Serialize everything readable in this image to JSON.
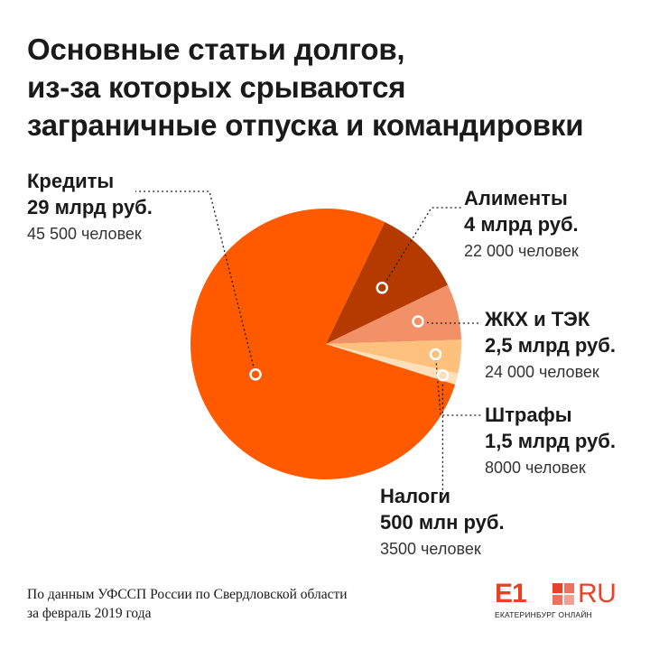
{
  "title_lines": [
    "Основные статьи долгов,",
    "из-за которых срываются",
    "заграничные отпуска и командировки"
  ],
  "chart_data": {
    "type": "pie",
    "unit": "млрд руб.",
    "slices": [
      {
        "name": "Кредиты",
        "value": 29,
        "amount_label": "29 млрд руб.",
        "people_label": "45 500 человек",
        "color": "#ff5a00"
      },
      {
        "name": "Алименты",
        "value": 4,
        "amount_label": "4 млрд руб.",
        "people_label": "22 000 человек",
        "color": "#b53a00"
      },
      {
        "name": "ЖКХ и ТЭК",
        "value": 2.5,
        "amount_label": "2,5 млрд руб.",
        "people_label": "24 000 человек",
        "color": "#f29068"
      },
      {
        "name": "Штрафы",
        "value": 1.5,
        "amount_label": "1,5 млрд руб.",
        "people_label": "8000 человек",
        "color": "#fec17d"
      },
      {
        "name": "Налоги",
        "value": 0.5,
        "amount_label": "500 млн руб.",
        "people_label": "3500 человек",
        "color": "#fde0ba"
      }
    ]
  },
  "source_lines": [
    "По данным УФССП России по Свердловской области",
    "за февраль 2019 года"
  ],
  "logo": {
    "mark": "E1",
    "domain": "RU",
    "tagline": "ЕКАТЕРИНБУРГ ОНЛАЙН",
    "color": "#e4432a"
  }
}
